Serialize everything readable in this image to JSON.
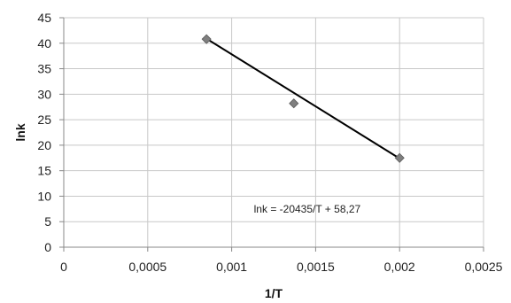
{
  "chart_data": {
    "type": "scatter",
    "xlabel": "1/T",
    "ylabel": "lnk",
    "xlim": [
      0,
      0.0025
    ],
    "ylim": [
      0,
      45
    ],
    "x_ticks": [
      0,
      0.0005,
      0.001,
      0.0015,
      0.002,
      0.0025
    ],
    "x_tick_labels": [
      "0",
      "0,0005",
      "0,001",
      "0,0015",
      "0,002",
      "0,0025"
    ],
    "y_ticks": [
      0,
      5,
      10,
      15,
      20,
      25,
      30,
      35,
      40,
      45
    ],
    "y_tick_labels": [
      "0",
      "5",
      "10",
      "15",
      "20",
      "25",
      "30",
      "35",
      "40",
      "45"
    ],
    "grid": true,
    "legend": "none",
    "series": [
      {
        "points": [
          {
            "x": 0.00085,
            "y": 40.8
          },
          {
            "x": 0.00137,
            "y": 28.2
          },
          {
            "x": 0.002,
            "y": 17.5
          }
        ],
        "marker": "diamond",
        "color": "#7f7f7f"
      }
    ],
    "trendline": {
      "x": [
        0.00085,
        0.002
      ],
      "y": [
        40.9,
        17.4
      ],
      "color": "#000000"
    },
    "annotation": {
      "text": "lnk = -20435/T + 58,27",
      "x": 0.00145,
      "y": 7.5
    }
  }
}
